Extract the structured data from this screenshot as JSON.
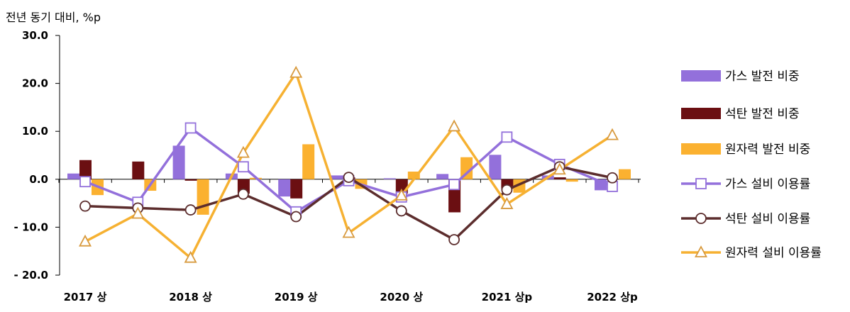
{
  "chart_data": {
    "type": "bar+line",
    "ylabel": "전년 동기 대비, %p",
    "ylim": [
      -20,
      30
    ],
    "yticks": [
      30,
      20,
      10,
      0,
      -10,
      -20
    ],
    "ytick_labels": [
      "30.0",
      "20.0",
      "10.0",
      "0.0",
      "- 10.0",
      "- 20.0"
    ],
    "x_labels": [
      {
        "index": 0,
        "label": "2017 상"
      },
      {
        "index": 2,
        "label": "2018 상"
      },
      {
        "index": 4,
        "label": "2019 상"
      },
      {
        "index": 6,
        "label": "2020 상"
      },
      {
        "index": 8,
        "label": "2021 상p"
      },
      {
        "index": 10,
        "label": "2022 상p"
      }
    ],
    "n_periods": 11,
    "bar_series": [
      {
        "name": "가스 발전 비중",
        "color": "#9370DB",
        "values": [
          1.2,
          0,
          7.0,
          1.2,
          -3.6,
          0.8,
          0.2,
          1.1,
          5.1,
          0.8,
          -2.3
        ]
      },
      {
        "name": "석탄 발전 비중",
        "color": "#6B0F12",
        "values": [
          4.0,
          3.7,
          -0.3,
          -3.0,
          -4.0,
          0.4,
          -3.0,
          -6.9,
          -2.0,
          0.4,
          0
        ]
      },
      {
        "name": "원자력 발전 비중",
        "color": "#FBB130",
        "values": [
          -3.3,
          -2.4,
          -7.4,
          0.3,
          7.3,
          -2.0,
          1.6,
          4.6,
          -2.8,
          -0.5,
          2.1
        ]
      }
    ],
    "line_series": [
      {
        "name": "가스 설비 이용률",
        "color": "#9370DB",
        "marker": "square",
        "values": [
          -0.5,
          -4.8,
          10.7,
          2.6,
          -6.8,
          -0.3,
          -3.7,
          -1.1,
          8.8,
          3.1,
          -1.5
        ]
      },
      {
        "name": "석탄 설비 이용률",
        "color": "#5C2D2D",
        "marker": "circle",
        "values": [
          -5.6,
          -6.0,
          -6.4,
          -3.1,
          -7.8,
          0.4,
          -6.6,
          -12.6,
          -2.2,
          2.6,
          0.3
        ]
      },
      {
        "name": "원자력 설비 이용률",
        "color": "#F6B132",
        "marker": "triangle",
        "values": [
          -13.0,
          -7.2,
          -16.4,
          5.5,
          22.2,
          -11.2,
          -3.4,
          11.0,
          -5.2,
          2.0,
          9.2
        ]
      }
    ],
    "legend_position": "right"
  }
}
